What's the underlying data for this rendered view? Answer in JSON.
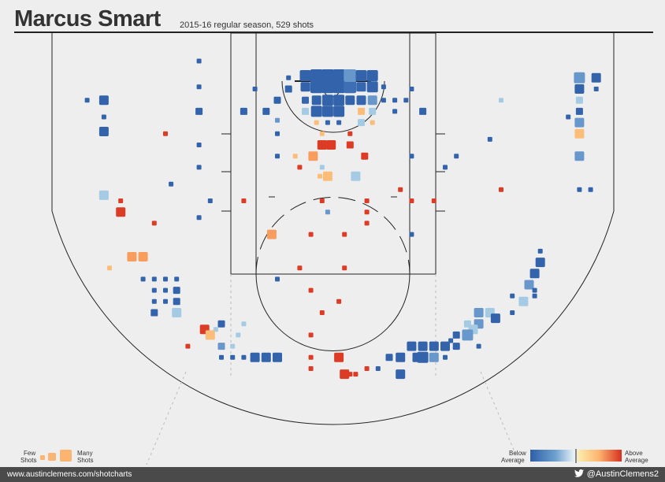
{
  "header": {
    "player": "Marcus Smart",
    "subtitle": "2015-16 regular season, 529 shots"
  },
  "footer": {
    "website": "www.austinclemens.com/shotcharts",
    "handle": "@AustinClemens2",
    "bird_icon": "twitter-bird-icon"
  },
  "legend": {
    "size_low": [
      "Few",
      "Shots"
    ],
    "size_high": [
      "Many",
      "Shots"
    ],
    "color_low": [
      "Below",
      "Average"
    ],
    "color_high": [
      "Above",
      "Average"
    ]
  },
  "colors": {
    "background": "#eeeeee",
    "court_line": "#222222",
    "scale": [
      "#2e5fa8",
      "#4e7fc0",
      "#8fbcdc",
      "#c7e2ef",
      "#fde6a4",
      "#fcb570",
      "#f47a45",
      "#d7301f"
    ]
  },
  "chart_data": {
    "type": "scatter",
    "title": "Marcus Smart",
    "subtitle": "2015-16 regular season, 529 shots",
    "xlabel": "",
    "ylabel": "",
    "encoding": {
      "x": "court x (ft from basket centre, + = right)",
      "y": "court y (ft from baseline)",
      "size": "shot count level 1-5",
      "color": "fg% relative to league average, -1 (below) to +1 (above)"
    },
    "xlim": [
      -25,
      25
    ],
    "ylim": [
      0,
      35
    ],
    "shots": [
      {
        "x": -2.5,
        "y": 4.8,
        "size": 3,
        "color": -0.95
      },
      {
        "x": -1.5,
        "y": 4.8,
        "size": 5,
        "color": -0.95
      },
      {
        "x": -0.5,
        "y": 4.8,
        "size": 5,
        "color": -0.95
      },
      {
        "x": 0.5,
        "y": 4.8,
        "size": 5,
        "color": -0.95
      },
      {
        "x": 1.5,
        "y": 4.8,
        "size": 5,
        "color": -0.8
      },
      {
        "x": 2.5,
        "y": 4.8,
        "size": 3,
        "color": -0.9
      },
      {
        "x": 3.5,
        "y": 4.8,
        "size": 4,
        "color": -0.95
      },
      {
        "x": -2.5,
        "y": 3.8,
        "size": 4,
        "color": -0.95
      },
      {
        "x": -1.5,
        "y": 3.8,
        "size": 5,
        "color": -0.95
      },
      {
        "x": -0.5,
        "y": 3.8,
        "size": 5,
        "color": -0.95
      },
      {
        "x": 0.5,
        "y": 3.8,
        "size": 5,
        "color": -0.95
      },
      {
        "x": 1.5,
        "y": 3.8,
        "size": 5,
        "color": -0.5
      },
      {
        "x": 2.5,
        "y": 3.8,
        "size": 4,
        "color": -0.95
      },
      {
        "x": 3.5,
        "y": 3.8,
        "size": 4,
        "color": -0.95
      },
      {
        "x": -2.5,
        "y": 6.0,
        "size": 2,
        "color": -0.9
      },
      {
        "x": -1.5,
        "y": 6.0,
        "size": 3,
        "color": -0.95
      },
      {
        "x": -0.5,
        "y": 6.0,
        "size": 4,
        "color": -0.95
      },
      {
        "x": 0.5,
        "y": 6.0,
        "size": 4,
        "color": -0.95
      },
      {
        "x": 1.5,
        "y": 6.0,
        "size": 3,
        "color": -0.95
      },
      {
        "x": 2.5,
        "y": 6.0,
        "size": 3,
        "color": -0.9
      },
      {
        "x": 3.5,
        "y": 6.0,
        "size": 3,
        "color": -0.5
      },
      {
        "x": 4.5,
        "y": 6.0,
        "size": 1,
        "color": -0.95
      },
      {
        "x": -1.5,
        "y": 7.0,
        "size": 4,
        "color": -0.95
      },
      {
        "x": -0.5,
        "y": 7.0,
        "size": 4,
        "color": -0.95
      },
      {
        "x": 0.5,
        "y": 7.0,
        "size": 4,
        "color": -0.95
      },
      {
        "x": 2.5,
        "y": 7.0,
        "size": 2,
        "color": 0.4
      },
      {
        "x": 3.5,
        "y": 7.0,
        "size": 2,
        "color": -0.25
      },
      {
        "x": -2.5,
        "y": 7.0,
        "size": 2,
        "color": -0.25
      },
      {
        "x": -1.5,
        "y": 8.0,
        "size": 1,
        "color": 0.4
      },
      {
        "x": -0.5,
        "y": 8.0,
        "size": 1,
        "color": -0.9
      },
      {
        "x": 0.5,
        "y": 8.0,
        "size": 1,
        "color": -0.9
      },
      {
        "x": 2.5,
        "y": 8.0,
        "size": 2,
        "color": -0.25
      },
      {
        "x": 3.5,
        "y": 8.0,
        "size": 1,
        "color": 0.4
      },
      {
        "x": -4.0,
        "y": 5.0,
        "size": 2,
        "color": -0.95
      },
      {
        "x": -4.0,
        "y": 4.0,
        "size": 1,
        "color": -0.95
      },
      {
        "x": -5.0,
        "y": 6.0,
        "size": 2,
        "color": -0.95
      },
      {
        "x": 4.5,
        "y": 4.8,
        "size": 1,
        "color": -0.95
      },
      {
        "x": -1.0,
        "y": 9.0,
        "size": 1,
        "color": 0.4
      },
      {
        "x": 1.5,
        "y": 9.0,
        "size": 1,
        "color": 0.95
      },
      {
        "x": -1.0,
        "y": 10.0,
        "size": 3,
        "color": 0.95
      },
      {
        "x": -0.2,
        "y": 10.0,
        "size": 3,
        "color": 0.95
      },
      {
        "x": 1.5,
        "y": 10.0,
        "size": 2,
        "color": 0.95
      },
      {
        "x": 2.8,
        "y": 11.0,
        "size": 2,
        "color": 0.95
      },
      {
        "x": -1.8,
        "y": 11.0,
        "size": 3,
        "color": 0.55
      },
      {
        "x": -3.4,
        "y": 11.0,
        "size": 1,
        "color": 0.4
      },
      {
        "x": -3.0,
        "y": 12.0,
        "size": 1,
        "color": 0.95
      },
      {
        "x": -1.0,
        "y": 12.0,
        "size": 1,
        "color": -0.25
      },
      {
        "x": -0.5,
        "y": 12.8,
        "size": 3,
        "color": 0.4
      },
      {
        "x": -1.2,
        "y": 12.8,
        "size": 1,
        "color": 0.4
      },
      {
        "x": 2.0,
        "y": 12.8,
        "size": 3,
        "color": -0.25
      },
      {
        "x": -6.0,
        "y": 7.0,
        "size": 2,
        "color": -0.95
      },
      {
        "x": -5.0,
        "y": 7.8,
        "size": 1,
        "color": -0.5
      },
      {
        "x": -5.0,
        "y": 9.0,
        "size": 1,
        "color": -0.95
      },
      {
        "x": -5.0,
        "y": 11.0,
        "size": 1,
        "color": -0.95
      },
      {
        "x": 5.5,
        "y": 6.0,
        "size": 1,
        "color": -0.95
      },
      {
        "x": 6.5,
        "y": 6.0,
        "size": 1,
        "color": -0.95
      },
      {
        "x": 5.5,
        "y": 7.0,
        "size": 1,
        "color": -0.95
      },
      {
        "x": -7.0,
        "y": 5.0,
        "size": 1,
        "color": -0.95
      },
      {
        "x": 7.0,
        "y": 5.0,
        "size": 1,
        "color": -0.95
      },
      {
        "x": -8.0,
        "y": 7.0,
        "size": 2,
        "color": -0.95
      },
      {
        "x": 8.0,
        "y": 7.0,
        "size": 2,
        "color": -0.95
      },
      {
        "x": 7.0,
        "y": 11.0,
        "size": 1,
        "color": -0.95
      },
      {
        "x": -1.0,
        "y": 15.0,
        "size": 1,
        "color": 0.95
      },
      {
        "x": 3.0,
        "y": 15.0,
        "size": 1,
        "color": 0.95
      },
      {
        "x": -0.5,
        "y": 16.0,
        "size": 1,
        "color": -0.5
      },
      {
        "x": 3.0,
        "y": 16.0,
        "size": 1,
        "color": 0.95
      },
      {
        "x": 3.0,
        "y": 17.0,
        "size": 1,
        "color": 0.95
      },
      {
        "x": 1.0,
        "y": 18.0,
        "size": 1,
        "color": 0.95
      },
      {
        "x": -2.0,
        "y": 18.0,
        "size": 1,
        "color": 0.95
      },
      {
        "x": 6.0,
        "y": 14.0,
        "size": 1,
        "color": 0.95
      },
      {
        "x": 7.0,
        "y": 15.0,
        "size": 1,
        "color": 0.95
      },
      {
        "x": -12.0,
        "y": 2.5,
        "size": 1,
        "color": -0.95
      },
      {
        "x": -12.0,
        "y": 4.8,
        "size": 1,
        "color": -0.95
      },
      {
        "x": -12.0,
        "y": 7.0,
        "size": 2,
        "color": -0.95
      },
      {
        "x": -8.0,
        "y": 15.0,
        "size": 1,
        "color": 0.95
      },
      {
        "x": -5.5,
        "y": 18.0,
        "size": 3,
        "color": 0.55
      },
      {
        "x": -3.0,
        "y": 21.0,
        "size": 1,
        "color": 0.95
      },
      {
        "x": 1.0,
        "y": 21.0,
        "size": 1,
        "color": 0.95
      },
      {
        "x": -2.0,
        "y": 23.0,
        "size": 1,
        "color": 0.95
      },
      {
        "x": 0.5,
        "y": 24.0,
        "size": 1,
        "color": 0.95
      },
      {
        "x": -1.0,
        "y": 25.0,
        "size": 1,
        "color": 0.95
      },
      {
        "x": -2.0,
        "y": 27.0,
        "size": 1,
        "color": 0.95
      },
      {
        "x": -5.0,
        "y": 22.0,
        "size": 1,
        "color": -0.95
      },
      {
        "x": -8.0,
        "y": 26.0,
        "size": 1,
        "color": -0.25
      },
      {
        "x": 7.0,
        "y": 18.0,
        "size": 1,
        "color": -0.95
      },
      {
        "x": -11.0,
        "y": 15.0,
        "size": 1,
        "color": -0.95
      },
      {
        "x": -12.0,
        "y": 12.0,
        "size": 1,
        "color": -0.95
      },
      {
        "x": -12.0,
        "y": 10.0,
        "size": 1,
        "color": -0.95
      },
      {
        "x": 9.0,
        "y": 15.0,
        "size": 1,
        "color": 0.95
      },
      {
        "x": 11.0,
        "y": 11.0,
        "size": 1,
        "color": -0.95
      },
      {
        "x": 10.0,
        "y": 12.0,
        "size": 1,
        "color": -0.95
      },
      {
        "x": -22.0,
        "y": 6.0,
        "size": 1,
        "color": -0.95
      },
      {
        "x": -20.5,
        "y": 6.0,
        "size": 3,
        "color": -0.95
      },
      {
        "x": -20.5,
        "y": 7.5,
        "size": 1,
        "color": -0.95
      },
      {
        "x": -20.5,
        "y": 8.8,
        "size": 3,
        "color": -0.95
      },
      {
        "x": -15.0,
        "y": 9.0,
        "size": 1,
        "color": 0.95
      },
      {
        "x": 22.0,
        "y": 4.0,
        "size": 4,
        "color": -0.5
      },
      {
        "x": 23.5,
        "y": 4.0,
        "size": 3,
        "color": -0.95
      },
      {
        "x": 23.5,
        "y": 5.0,
        "size": 1,
        "color": -0.95
      },
      {
        "x": 22.0,
        "y": 5.0,
        "size": 3,
        "color": -0.95
      },
      {
        "x": 22.0,
        "y": 6.0,
        "size": 2,
        "color": -0.25
      },
      {
        "x": 22.0,
        "y": 7.0,
        "size": 2,
        "color": -0.95
      },
      {
        "x": 21.0,
        "y": 7.5,
        "size": 1,
        "color": -0.95
      },
      {
        "x": 22.0,
        "y": 8.0,
        "size": 3,
        "color": -0.5
      },
      {
        "x": 22.0,
        "y": 9.0,
        "size": 3,
        "color": 0.4
      },
      {
        "x": 22.0,
        "y": 11.0,
        "size": 3,
        "color": -0.5
      },
      {
        "x": 15.0,
        "y": 6.0,
        "size": 1,
        "color": -0.25
      },
      {
        "x": 14.0,
        "y": 9.5,
        "size": 1,
        "color": -0.95
      },
      {
        "x": -20.5,
        "y": 14.5,
        "size": 3,
        "color": -0.25
      },
      {
        "x": -19.0,
        "y": 15.0,
        "size": 1,
        "color": 0.95
      },
      {
        "x": -19.0,
        "y": 16.0,
        "size": 3,
        "color": 0.95
      },
      {
        "x": -14.5,
        "y": 13.5,
        "size": 1,
        "color": -0.95
      },
      {
        "x": -12.0,
        "y": 16.5,
        "size": 1,
        "color": -0.95
      },
      {
        "x": -16.0,
        "y": 17.0,
        "size": 1,
        "color": 0.95
      },
      {
        "x": 22.0,
        "y": 14.0,
        "size": 1,
        "color": -0.95
      },
      {
        "x": 23.0,
        "y": 14.0,
        "size": 1,
        "color": -0.95
      },
      {
        "x": 15.0,
        "y": 14.0,
        "size": 1,
        "color": 0.95
      },
      {
        "x": -18.0,
        "y": 20.0,
        "size": 3,
        "color": 0.55
      },
      {
        "x": -17.0,
        "y": 20.0,
        "size": 3,
        "color": 0.55
      },
      {
        "x": -20.0,
        "y": 21.0,
        "size": 1,
        "color": 0.4
      },
      {
        "x": 18.5,
        "y": 20.5,
        "size": 3,
        "color": -0.95
      },
      {
        "x": 18.5,
        "y": 19.5,
        "size": 1,
        "color": -0.95
      },
      {
        "x": 18.0,
        "y": 21.5,
        "size": 3,
        "color": -0.95
      },
      {
        "x": 17.5,
        "y": 22.5,
        "size": 3,
        "color": -0.5
      },
      {
        "x": 18.0,
        "y": 23.0,
        "size": 1,
        "color": -0.95
      },
      {
        "x": -17.0,
        "y": 22.0,
        "size": 1,
        "color": -0.95
      },
      {
        "x": -16.0,
        "y": 22.0,
        "size": 1,
        "color": -0.95
      },
      {
        "x": -15.0,
        "y": 22.0,
        "size": 1,
        "color": -0.95
      },
      {
        "x": -14.0,
        "y": 22.0,
        "size": 1,
        "color": -0.95
      },
      {
        "x": -16.0,
        "y": 23.0,
        "size": 1,
        "color": -0.95
      },
      {
        "x": -15.0,
        "y": 23.0,
        "size": 1,
        "color": -0.95
      },
      {
        "x": -14.0,
        "y": 23.0,
        "size": 2,
        "color": -0.95
      },
      {
        "x": -16.0,
        "y": 24.0,
        "size": 1,
        "color": -0.95
      },
      {
        "x": -15.0,
        "y": 24.0,
        "size": 1,
        "color": -0.95
      },
      {
        "x": -14.0,
        "y": 24.0,
        "size": 2,
        "color": -0.95
      },
      {
        "x": -16.0,
        "y": 25.0,
        "size": 2,
        "color": -0.95
      },
      {
        "x": -14.0,
        "y": 25.0,
        "size": 3,
        "color": -0.25
      },
      {
        "x": 16.0,
        "y": 23.5,
        "size": 1,
        "color": -0.95
      },
      {
        "x": 17.0,
        "y": 24.0,
        "size": 3,
        "color": -0.25
      },
      {
        "x": 18.0,
        "y": 23.5,
        "size": 1,
        "color": -0.95
      },
      {
        "x": 16.0,
        "y": 25.0,
        "size": 1,
        "color": -0.95
      },
      {
        "x": 14.0,
        "y": 25.0,
        "size": 3,
        "color": -0.25
      },
      {
        "x": 13.0,
        "y": 25.0,
        "size": 3,
        "color": -0.5
      },
      {
        "x": 14.5,
        "y": 25.5,
        "size": 3,
        "color": -0.95
      },
      {
        "x": 12.0,
        "y": 26.0,
        "size": 2,
        "color": -0.25
      },
      {
        "x": 13.0,
        "y": 26.0,
        "size": 3,
        "color": -0.5
      },
      {
        "x": 12.5,
        "y": 26.5,
        "size": 3,
        "color": -0.25
      },
      {
        "x": -11.5,
        "y": 26.5,
        "size": 3,
        "color": 0.95
      },
      {
        "x": -10.5,
        "y": 26.5,
        "size": 1,
        "color": -0.25
      },
      {
        "x": -10.0,
        "y": 26.0,
        "size": 2,
        "color": -0.95
      },
      {
        "x": -11.0,
        "y": 27.0,
        "size": 3,
        "color": 0.4
      },
      {
        "x": -13.0,
        "y": 28.0,
        "size": 1,
        "color": 0.95
      },
      {
        "x": 11.0,
        "y": 27.0,
        "size": 2,
        "color": -0.95
      },
      {
        "x": 10.5,
        "y": 27.5,
        "size": 1,
        "color": -0.95
      },
      {
        "x": 12.0,
        "y": 27.0,
        "size": 4,
        "color": -0.5
      },
      {
        "x": 13.0,
        "y": 28.0,
        "size": 1,
        "color": -0.95
      },
      {
        "x": -10.0,
        "y": 28.0,
        "size": 2,
        "color": -0.5
      },
      {
        "x": -9.0,
        "y": 28.0,
        "size": 1,
        "color": -0.25
      },
      {
        "x": -8.5,
        "y": 27.0,
        "size": 1,
        "color": -0.25
      },
      {
        "x": -10.0,
        "y": 29.0,
        "size": 1,
        "color": -0.95
      },
      {
        "x": -9.0,
        "y": 29.0,
        "size": 1,
        "color": -0.95
      },
      {
        "x": -8.0,
        "y": 29.0,
        "size": 1,
        "color": -0.95
      },
      {
        "x": -7.0,
        "y": 29.0,
        "size": 3,
        "color": -0.95
      },
      {
        "x": -6.0,
        "y": 29.0,
        "size": 3,
        "color": -0.95
      },
      {
        "x": -5.0,
        "y": 29.0,
        "size": 3,
        "color": -0.95
      },
      {
        "x": -2.0,
        "y": 29.0,
        "size": 1,
        "color": 0.95
      },
      {
        "x": 0.5,
        "y": 29.0,
        "size": 3,
        "color": 0.95
      },
      {
        "x": 7.0,
        "y": 28.0,
        "size": 3,
        "color": -0.95
      },
      {
        "x": 8.0,
        "y": 28.0,
        "size": 3,
        "color": -0.95
      },
      {
        "x": 9.0,
        "y": 28.0,
        "size": 3,
        "color": -0.95
      },
      {
        "x": 10.0,
        "y": 28.0,
        "size": 3,
        "color": -0.95
      },
      {
        "x": 11.0,
        "y": 28.0,
        "size": 2,
        "color": -0.95
      },
      {
        "x": 5.0,
        "y": 29.0,
        "size": 2,
        "color": -0.95
      },
      {
        "x": 6.0,
        "y": 29.0,
        "size": 3,
        "color": -0.95
      },
      {
        "x": 7.5,
        "y": 29.0,
        "size": 3,
        "color": -0.95
      },
      {
        "x": 8.0,
        "y": 29.0,
        "size": 4,
        "color": -0.95
      },
      {
        "x": 9.0,
        "y": 29.0,
        "size": 3,
        "color": -0.5
      },
      {
        "x": 10.0,
        "y": 29.0,
        "size": 1,
        "color": -0.95
      },
      {
        "x": 3.0,
        "y": 30.0,
        "size": 1,
        "color": 0.95
      },
      {
        "x": 4.0,
        "y": 30.0,
        "size": 1,
        "color": -0.95
      },
      {
        "x": -2.0,
        "y": 30.0,
        "size": 1,
        "color": 0.95
      },
      {
        "x": 1.0,
        "y": 30.5,
        "size": 3,
        "color": 0.95
      },
      {
        "x": 1.5,
        "y": 30.5,
        "size": 1,
        "color": 0.95
      },
      {
        "x": 2.0,
        "y": 30.5,
        "size": 1,
        "color": 0.95
      },
      {
        "x": 6.0,
        "y": 30.5,
        "size": 3,
        "color": -0.95
      }
    ]
  }
}
